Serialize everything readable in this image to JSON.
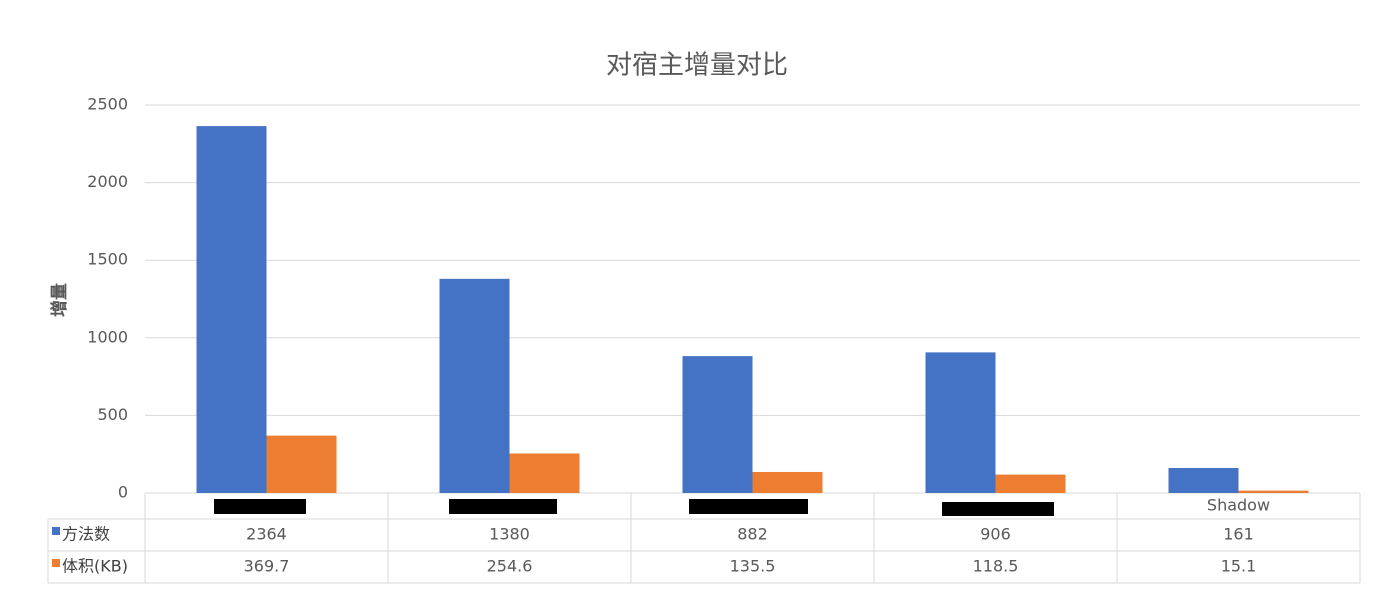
{
  "chart_data": {
    "type": "bar",
    "title": "对宿主增量对比",
    "y_label": "增量",
    "categories": [
      null,
      null,
      null,
      null,
      "Shadow"
    ],
    "series": [
      {
        "name": "方法数",
        "color": "#4472c4",
        "values": [
          2364,
          1380,
          882,
          906,
          161
        ]
      },
      {
        "name": "体积(KB)",
        "color": "#ed7d31",
        "values": [
          369.7,
          254.6,
          135.5,
          118.5,
          15.1
        ]
      }
    ],
    "ylim": [
      0,
      2500
    ],
    "yticks": [
      0,
      500,
      1000,
      1500,
      2000,
      2500
    ],
    "grid": true,
    "data_table": true
  }
}
